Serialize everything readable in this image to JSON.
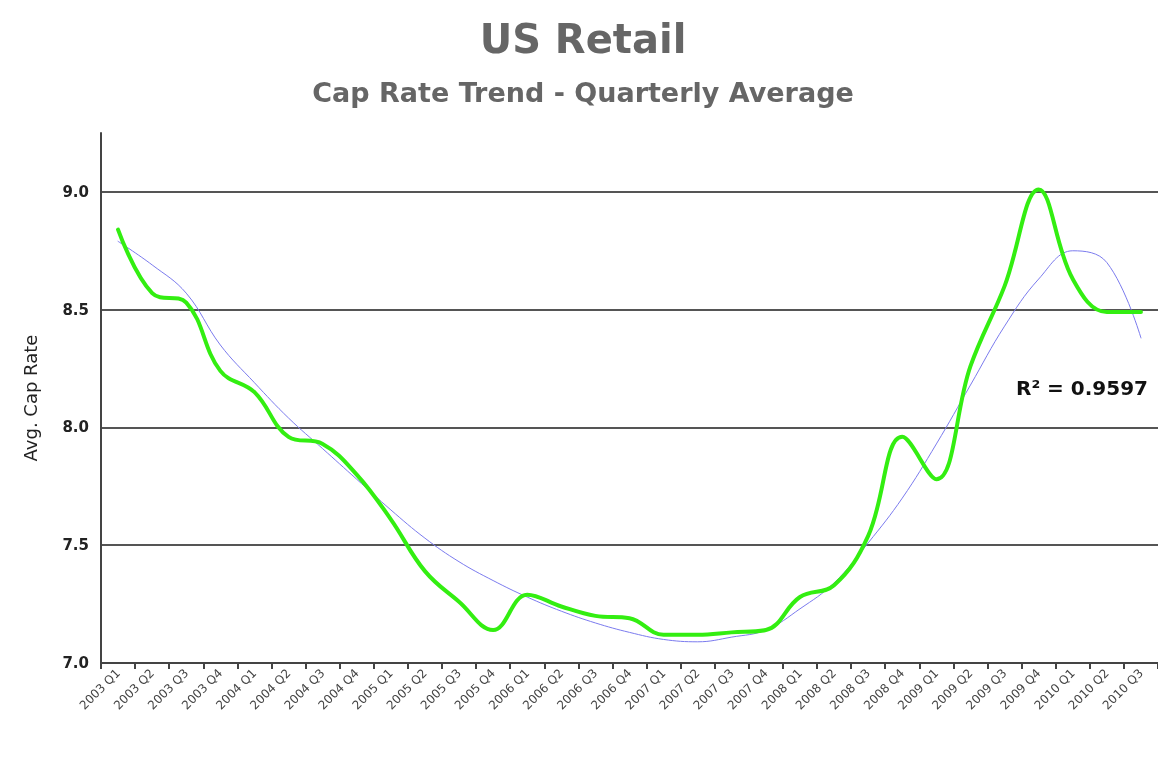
{
  "chart_data": {
    "type": "line",
    "title": "US Retail",
    "subtitle": "Cap Rate Trend - Quarterly Average",
    "ylabel": "Avg. Cap Rate",
    "categories": [
      "2003 Q1",
      "2003 Q2",
      "2003 Q3",
      "2003 Q4",
      "2004 Q1",
      "2004 Q2",
      "2004 Q3",
      "2004 Q4",
      "2005 Q1",
      "2005 Q2",
      "2005 Q3",
      "2005 Q4",
      "2006 Q1",
      "2006 Q2",
      "2006 Q3",
      "2006 Q4",
      "2007 Q1",
      "2007 Q2",
      "2007 Q3",
      "2007 Q4",
      "2008 Q1",
      "2008 Q2",
      "2008 Q3",
      "2008 Q4",
      "2009 Q1",
      "2009 Q2",
      "2009 Q3",
      "2009 Q4",
      "2010 Q1",
      "2010 Q2",
      "2010 Q3"
    ],
    "series": [
      {
        "color": "#33ee11",
        "values": [
          8.84,
          8.57,
          8.53,
          8.24,
          8.15,
          7.96,
          7.93,
          7.8,
          7.61,
          7.39,
          7.26,
          7.14,
          7.29,
          7.24,
          7.2,
          7.19,
          7.12,
          7.12,
          7.13,
          7.14,
          7.28,
          7.33,
          7.54,
          7.96,
          7.78,
          8.26,
          8.6,
          9.01,
          8.63,
          8.49,
          8.49
        ]
      },
      {
        "type": "line",
        "color": "#7b7bee",
        "x": [
          "2003 Q1",
          "2003 Q2",
          "2003 Q3",
          "2003 Q4",
          "2004 Q1",
          "2004 Q2",
          "2004 Q3",
          "2004 Q4",
          "2005 Q1",
          "2005 Q2",
          "2005 Q3",
          "2005 Q4",
          "2006 Q1",
          "2006 Q2",
          "2006 Q3",
          "2006 Q4",
          "2007 Q1",
          "2007 Q2",
          "2007 Q3",
          "2007 Q4",
          "2008 Q1",
          "2008 Q2",
          "2008 Q3",
          "2008 Q4",
          "2009 Q1",
          "2009 Q2",
          "2009 Q3",
          "2009 Q4",
          "2010 Q1",
          "2010 Q2",
          "2010 Q3"
        ],
        "values": [
          8.79,
          8.69,
          8.57,
          8.35,
          8.19,
          8.04,
          7.91,
          7.78,
          7.65,
          7.53,
          7.43,
          7.35,
          7.28,
          7.22,
          7.17,
          7.13,
          7.1,
          7.09,
          7.11,
          7.14,
          7.23,
          7.34,
          7.51,
          7.7,
          7.93,
          8.18,
          8.43,
          8.63,
          8.75,
          8.7,
          8.38
        ]
      }
    ],
    "ylim": [
      7.0,
      9.25
    ],
    "yticks": [
      {
        "value": 7,
        "label": "7.0"
      },
      {
        "value": 7.5,
        "label": "7.5"
      },
      {
        "value": 8,
        "label": "8.0"
      },
      {
        "value": 8.5,
        "label": "8.5"
      },
      {
        "value": 9,
        "label": "9.0"
      }
    ],
    "grid": "y",
    "marker": "none",
    "annotations": [
      "R² = 0.9597"
    ]
  }
}
